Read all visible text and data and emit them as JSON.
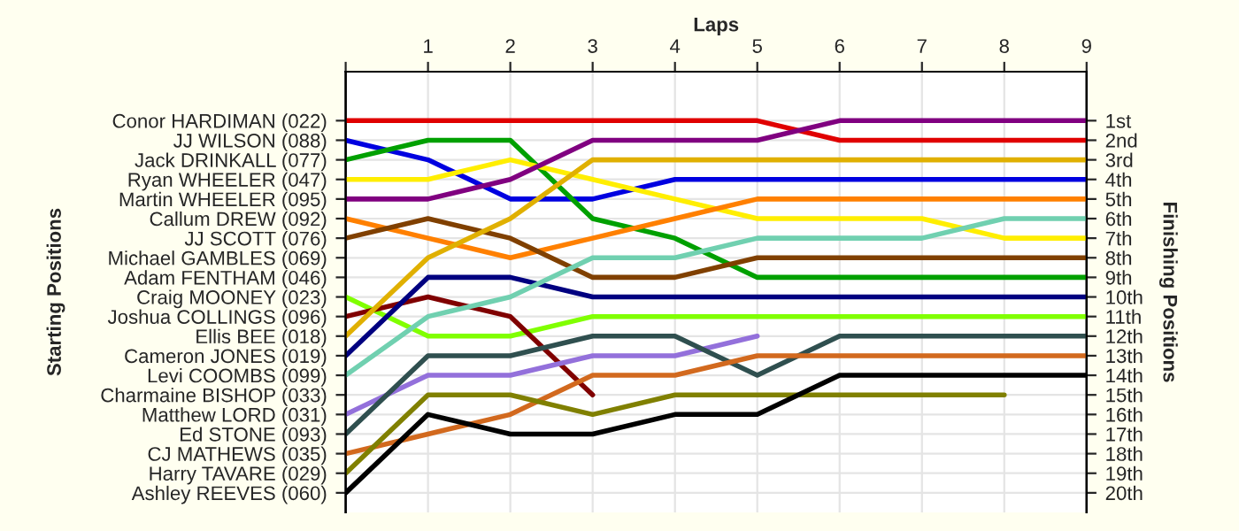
{
  "chart_data": {
    "type": "line",
    "xlabel": "Laps",
    "ylabel": "Finishing Positions",
    "annotations": [
      "Starting Positions"
    ],
    "x": [
      0,
      1,
      2,
      3,
      4,
      5,
      6,
      7,
      8,
      9
    ],
    "xlim": [
      0,
      9
    ],
    "xticks": [
      {
        "value": 0,
        "label": null
      },
      1,
      2,
      3,
      4,
      5,
      6,
      7,
      8,
      9
    ],
    "ylim": [
      21,
      -1.5
    ],
    "y2_categories": [
      "Conor HARDIMAN (022)",
      "JJ WILSON (088)",
      "Jack DRINKALL (077)",
      "Ryan WHEELER (047)",
      "Martin WHEELER (095)",
      "Callum DREW (092)",
      "JJ SCOTT (076)",
      "Michael GAMBLES (069)",
      "Adam FENTHAM (046)",
      "Craig MOONEY (023)",
      "Joshua COLLINGS (096)",
      "Ellis BEE (018)",
      "Cameron JONES (019)",
      "Levi COOMBS (099)",
      "Charmaine BISHOP (033)",
      "Matthew LORD (031)",
      "Ed STONE (093)",
      "CJ MATHEWS (035)",
      "Harry TAVARE (029)",
      "Ashley REEVES (060)"
    ],
    "yticks": [
      {
        "value": 1,
        "label": "1st"
      },
      {
        "value": 2,
        "label": "2nd"
      },
      {
        "value": 3,
        "label": "3rd"
      },
      {
        "value": 4,
        "label": "4th"
      },
      {
        "value": 5,
        "label": "5th"
      },
      {
        "value": 6,
        "label": "6th"
      },
      {
        "value": 7,
        "label": "7th"
      },
      {
        "value": 8,
        "label": "8th"
      },
      {
        "value": 9,
        "label": "9th"
      },
      {
        "value": 10,
        "label": "10th"
      },
      {
        "value": 11,
        "label": "11th"
      },
      {
        "value": 12,
        "label": "12th"
      },
      {
        "value": 13,
        "label": "13th"
      },
      {
        "value": 14,
        "label": "14th"
      },
      {
        "value": 15,
        "label": "15th"
      },
      {
        "value": 16,
        "label": "16th"
      },
      {
        "value": 17,
        "label": "17th"
      },
      {
        "value": 18,
        "label": "18th"
      },
      {
        "value": 19,
        "label": "19th"
      },
      {
        "value": 20,
        "label": "20th"
      }
    ],
    "grid": true,
    "marker": "none",
    "line_style": "solid",
    "series": [
      {
        "color": "#e00000",
        "values": [
          1,
          1,
          1,
          1,
          1,
          1,
          2,
          2,
          2,
          2
        ]
      },
      {
        "color": "#0000e0",
        "values": [
          2,
          3,
          5,
          5,
          4,
          4,
          4,
          4,
          4,
          4
        ]
      },
      {
        "color": "#00a000",
        "values": [
          3,
          2,
          2,
          6,
          7,
          9,
          9,
          9,
          9,
          9
        ]
      },
      {
        "color": "#ffee00",
        "values": [
          4,
          4,
          3,
          4,
          5,
          6,
          6,
          6,
          7,
          7
        ]
      },
      {
        "color": "#800080",
        "values": [
          5,
          5,
          4,
          2,
          2,
          2,
          1,
          1,
          1,
          1
        ]
      },
      {
        "color": "#ff8000",
        "values": [
          6,
          7,
          8,
          7,
          6,
          5,
          5,
          5,
          5,
          5
        ]
      },
      {
        "color": "#804000",
        "values": [
          7,
          6,
          7,
          9,
          9,
          8,
          8,
          8,
          8,
          8
        ]
      },
      {
        "color": "#80ff00",
        "values": [
          10,
          12,
          12,
          11,
          11,
          11,
          11,
          11,
          11,
          11
        ]
      },
      {
        "color": "#800000",
        "values": [
          11,
          10,
          11,
          15,
          null,
          null,
          null,
          null,
          null,
          null
        ]
      },
      {
        "color": "#e0b000",
        "values": [
          12,
          8,
          6,
          3,
          3,
          3,
          3,
          3,
          3,
          3
        ]
      },
      {
        "color": "#000080",
        "values": [
          13,
          9,
          9,
          10,
          10,
          10,
          10,
          10,
          10,
          10
        ]
      },
      {
        "color": "#70d0b0",
        "values": [
          14,
          11,
          10,
          8,
          8,
          7,
          7,
          7,
          6,
          6
        ]
      },
      {
        "color": "#9370db",
        "values": [
          16,
          14,
          14,
          13,
          13,
          12,
          null,
          null,
          null,
          null
        ]
      },
      {
        "color": "#2f4f4f",
        "values": [
          17,
          13,
          13,
          12,
          12,
          14,
          12,
          12,
          12,
          12
        ]
      },
      {
        "color": "#d2691e",
        "values": [
          18,
          17,
          16,
          14,
          14,
          13,
          13,
          13,
          13,
          13
        ]
      },
      {
        "color": "#808000",
        "values": [
          19,
          15,
          15,
          16,
          15,
          15,
          15,
          15,
          15,
          null
        ]
      },
      {
        "color": "#000000",
        "values": [
          20,
          16,
          17,
          17,
          16,
          16,
          14,
          14,
          14,
          14
        ]
      }
    ]
  }
}
